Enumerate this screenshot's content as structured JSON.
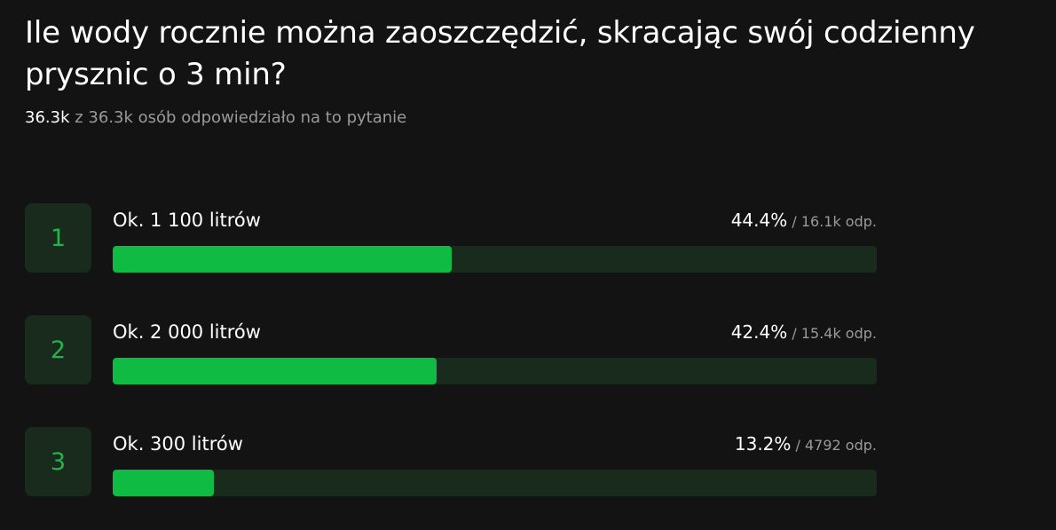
{
  "poll": {
    "question": "Ile wody rocznie można zaoszczędzić, skracając swój codzienny prysznic o 3 min?",
    "responses": {
      "answered": "36.3k",
      "rest": "z 36.3k osób odpowiedziało na to pytanie"
    },
    "separator": "/",
    "options": [
      {
        "number": "1",
        "label": "Ok. 1 100 litrów",
        "percent_text": "44.4%",
        "count_text": "16.1k odp.",
        "fraction": 0.444
      },
      {
        "number": "2",
        "label": "Ok. 2 000 litrów",
        "percent_text": "42.4%",
        "count_text": "15.4k odp.",
        "fraction": 0.424
      },
      {
        "number": "3",
        "label": "Ok. 300 litrów",
        "percent_text": "13.2%",
        "count_text": "4792 odp.",
        "fraction": 0.132
      }
    ]
  },
  "colors": {
    "background": "#131313",
    "accent": "#10bb43",
    "track": "#182b1d",
    "muted_text": "#9a9a9a"
  }
}
